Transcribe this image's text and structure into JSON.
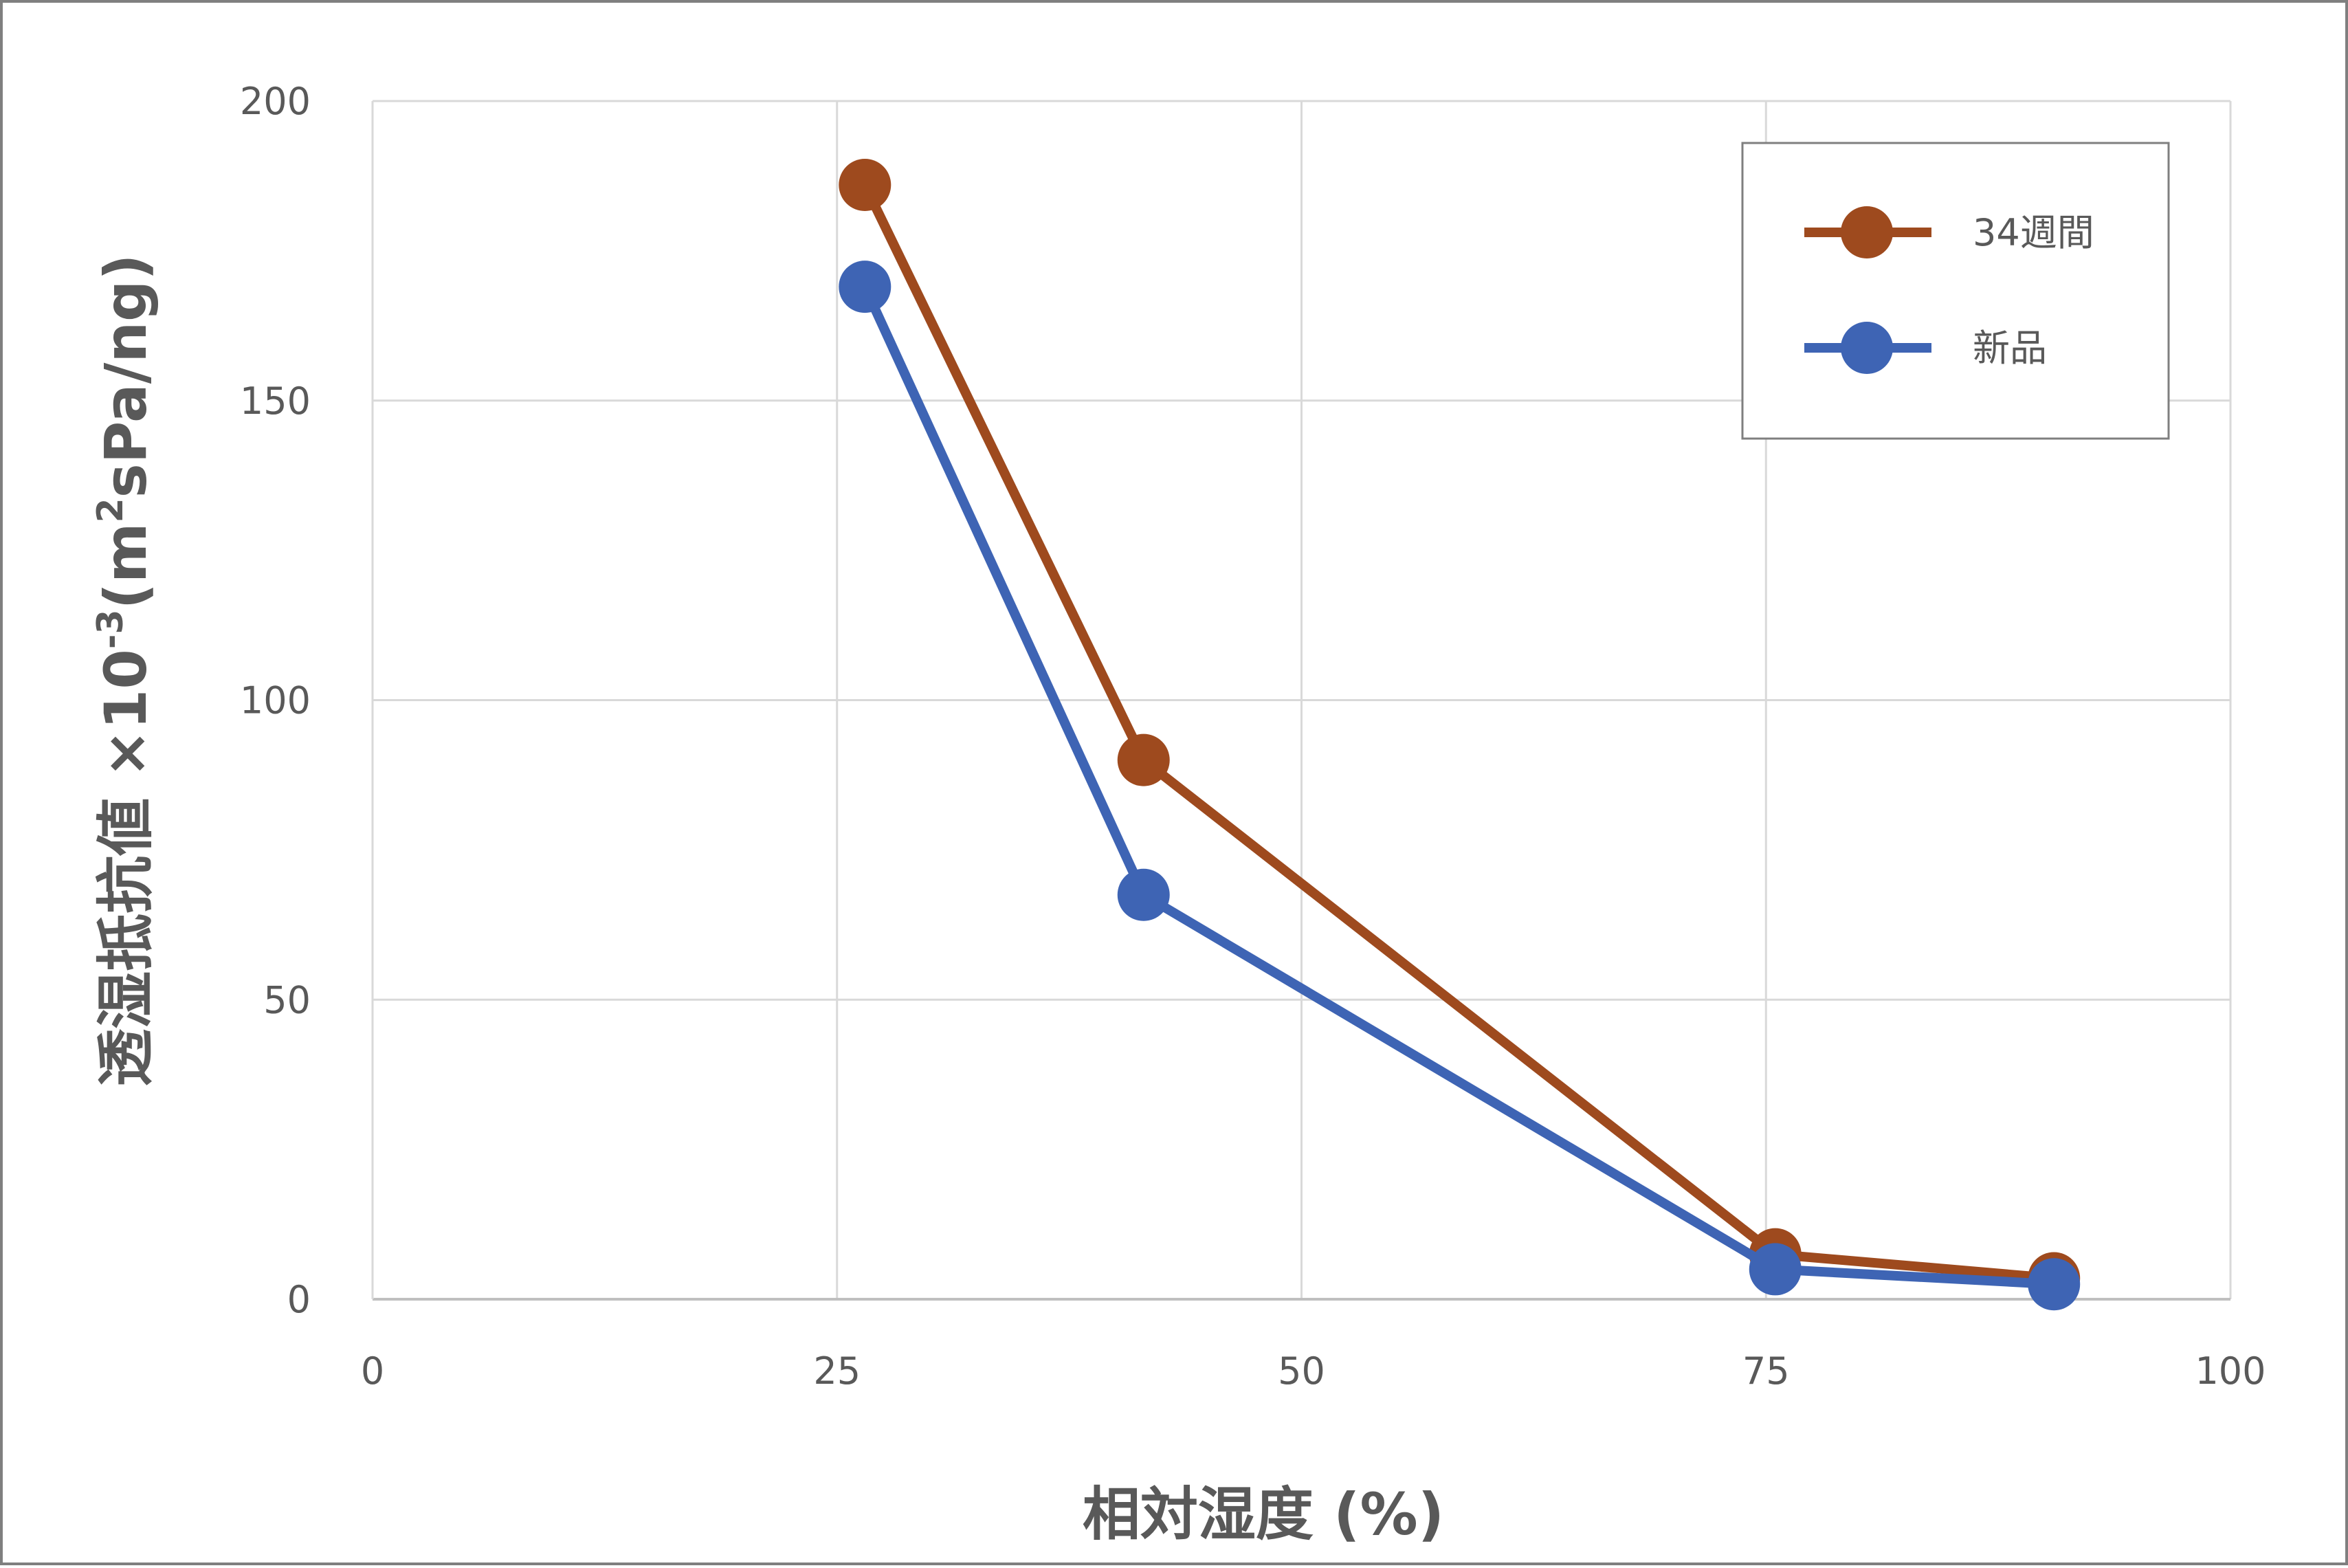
{
  "chart_data": {
    "type": "line",
    "title": "",
    "xlabel": "相対湿度 (%)",
    "ylabel": {
      "prefix": "透湿抵抗値 ×10",
      "exp1": "-3",
      "mid": "(m",
      "exp2": "2",
      "suffix": "sPa/ng)"
    },
    "xlim": [
      0,
      100
    ],
    "ylim": [
      0,
      200
    ],
    "xticks": [
      0,
      25,
      50,
      75,
      100
    ],
    "yticks": [
      0,
      50,
      100,
      150,
      200
    ],
    "grid": true,
    "legend_position": "top-right",
    "series": [
      {
        "name": "34週間",
        "color": "#9E4A1E",
        "points": [
          [
            26.5,
            186
          ],
          [
            41.5,
            90
          ],
          [
            75.5,
            7.5
          ],
          [
            90.5,
            3.5
          ]
        ]
      },
      {
        "name": "新品",
        "color": "#3E64B4",
        "points": [
          [
            26.5,
            169
          ],
          [
            41.5,
            67.5
          ],
          [
            75.5,
            5
          ],
          [
            90.5,
            2.5
          ]
        ]
      }
    ]
  }
}
